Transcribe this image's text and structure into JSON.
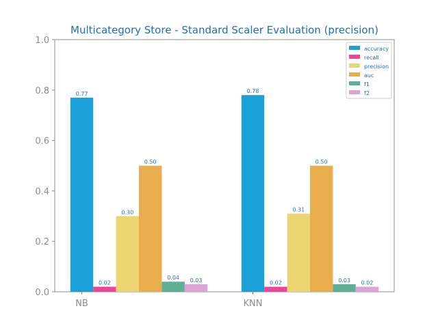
{
  "chart_data": {
    "type": "bar",
    "title": "Multicategory Store - Standard Scaler Evaluation (precision)",
    "xlabel": "",
    "ylabel": "",
    "ylim": [
      0,
      1.0
    ],
    "yticks": [
      "0.0",
      "0.2",
      "0.4",
      "0.6",
      "0.8",
      "1.0"
    ],
    "categories": [
      "NB",
      "KNN"
    ],
    "series": [
      {
        "name": "accuracy",
        "color": "#1a9fd9",
        "values": [
          0.77,
          0.78
        ],
        "labels": [
          "0.77",
          "0.78"
        ]
      },
      {
        "name": "recall",
        "color": "#e8479a",
        "values": [
          0.02,
          0.02
        ],
        "labels": [
          "0.02",
          "0.02"
        ]
      },
      {
        "name": "precision",
        "color": "#edd473",
        "values": [
          0.3,
          0.31
        ],
        "labels": [
          "0.30",
          "0.31"
        ]
      },
      {
        "name": "auc",
        "color": "#e8ae4e",
        "values": [
          0.5,
          0.5
        ],
        "labels": [
          "0.50",
          "0.50"
        ]
      },
      {
        "name": "f1",
        "color": "#5faf96",
        "values": [
          0.04,
          0.03
        ],
        "labels": [
          "0.04",
          "0.03"
        ]
      },
      {
        "name": "f2",
        "color": "#dba3d6",
        "values": [
          0.03,
          0.02
        ],
        "labels": [
          "0.03",
          "0.02"
        ]
      }
    ],
    "legend": "top-right",
    "grid": false
  }
}
